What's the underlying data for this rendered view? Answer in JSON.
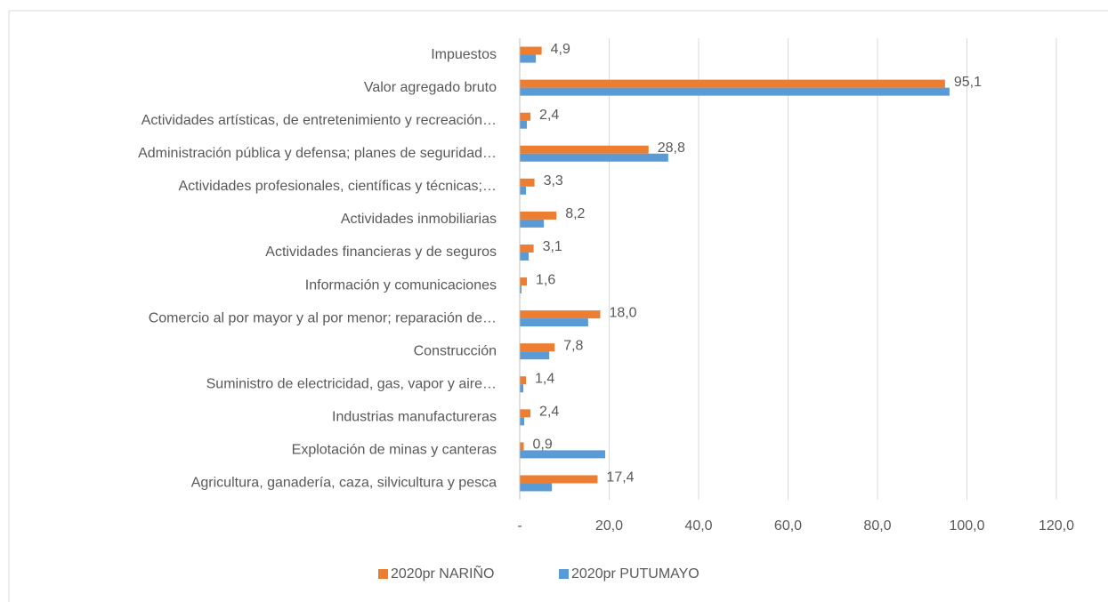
{
  "chart_data": {
    "type": "bar",
    "orientation": "horizontal",
    "categories": [
      "Impuestos",
      "Valor agregado bruto",
      "Actividades artísticas, de entretenimiento y recreación…",
      "Administración pública y defensa; planes de seguridad…",
      "Actividades profesionales, científicas y técnicas;…",
      "Actividades inmobiliarias",
      "Actividades financieras y de seguros",
      "Información y comunicaciones",
      "Comercio al por mayor y al por menor; reparación de…",
      "Construcción",
      "Suministro de electricidad, gas, vapor y aire…",
      "Industrias manufactureras",
      "Explotación de minas y canteras",
      "Agricultura, ganadería, caza, silvicultura y pesca"
    ],
    "series": [
      {
        "name": "2020pr NARIÑO",
        "color": "#ED7D31",
        "values": [
          4.9,
          95.1,
          2.4,
          28.8,
          3.3,
          8.2,
          3.1,
          1.6,
          18.0,
          7.8,
          1.4,
          2.4,
          0.9,
          17.4
        ],
        "value_labels": [
          "4,9",
          "95,1",
          "2,4",
          "28,8",
          "3,3",
          "8,2",
          "3,1",
          "1,6",
          "18,0",
          "7,8",
          "1,4",
          "2,4",
          "0,9",
          "17,4"
        ]
      },
      {
        "name": "2020pr PUTUMAYO",
        "color": "#5B9BD5",
        "values": [
          3.6,
          96.1,
          1.6,
          33.2,
          1.4,
          5.4,
          2.0,
          0.4,
          15.3,
          6.6,
          0.8,
          1.0,
          19.1,
          7.2
        ]
      }
    ],
    "xlim": [
      0,
      120
    ],
    "xticks": [
      {
        "value": 0,
        "label": "-"
      },
      {
        "value": 20,
        "label": "20,0"
      },
      {
        "value": 40,
        "label": "40,0"
      },
      {
        "value": 60,
        "label": "60,0"
      },
      {
        "value": 80,
        "label": "80,0"
      },
      {
        "value": 100,
        "label": "100,0"
      },
      {
        "value": 120,
        "label": "120,0"
      }
    ],
    "grid": true,
    "legend": "bottom"
  }
}
